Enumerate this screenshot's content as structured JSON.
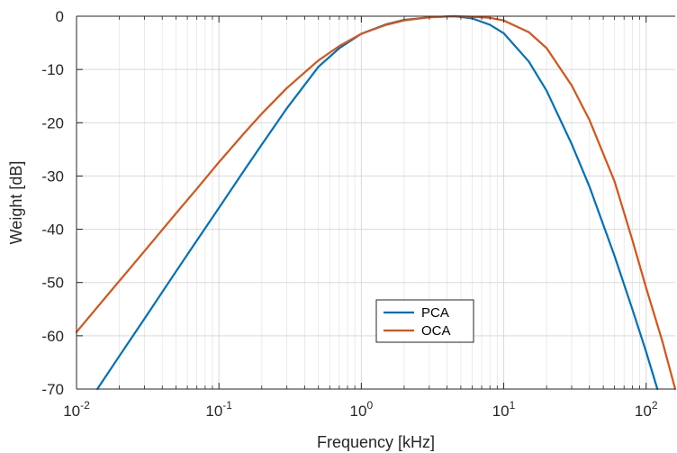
{
  "chart_data": {
    "type": "line",
    "xlabel": "Frequency [kHz]",
    "ylabel": "Weight [dB]",
    "xscale": "log",
    "xlim": [
      0.01,
      160
    ],
    "ylim": [
      -70,
      0
    ],
    "grid": true,
    "legend_position": "bottom-center",
    "x_ticks": [
      {
        "value": 0.01,
        "base": "10",
        "exp": "-2"
      },
      {
        "value": 0.1,
        "base": "10",
        "exp": "-1"
      },
      {
        "value": 1,
        "base": "10",
        "exp": "0"
      },
      {
        "value": 10,
        "base": "10",
        "exp": "1"
      },
      {
        "value": 100,
        "base": "10",
        "exp": "2"
      }
    ],
    "y_ticks": [
      {
        "value": 0,
        "label": "0"
      },
      {
        "value": -10,
        "label": "-10"
      },
      {
        "value": -20,
        "label": "-20"
      },
      {
        "value": -30,
        "label": "-30"
      },
      {
        "value": -40,
        "label": "-40"
      },
      {
        "value": -50,
        "label": "-50"
      },
      {
        "value": -60,
        "label": "-60"
      },
      {
        "value": -70,
        "label": "-70"
      }
    ],
    "series": [
      {
        "name": "PCA",
        "color": "#0072BD",
        "points": [
          [
            0.014,
            -70
          ],
          [
            0.02,
            -63.8
          ],
          [
            0.03,
            -56.8
          ],
          [
            0.05,
            -47.9
          ],
          [
            0.07,
            -42.1
          ],
          [
            0.1,
            -36
          ],
          [
            0.15,
            -29
          ],
          [
            0.2,
            -24.1
          ],
          [
            0.3,
            -17.3
          ],
          [
            0.5,
            -9.5
          ],
          [
            0.7,
            -6
          ],
          [
            1,
            -3.3
          ],
          [
            1.5,
            -1.5
          ],
          [
            2,
            -0.7
          ],
          [
            3,
            -0.2
          ],
          [
            4.5,
            0
          ],
          [
            6,
            -0.4
          ],
          [
            8,
            -1.6
          ],
          [
            10,
            -3.2
          ],
          [
            15,
            -8.5
          ],
          [
            20,
            -14
          ],
          [
            30,
            -24
          ],
          [
            40,
            -32
          ],
          [
            60,
            -45
          ],
          [
            80,
            -55
          ],
          [
            100,
            -63
          ],
          [
            120,
            -70
          ]
        ]
      },
      {
        "name": "OCA",
        "color": "#D95319",
        "points": [
          [
            0.01,
            -59.3
          ],
          [
            0.02,
            -49.7
          ],
          [
            0.03,
            -44.1
          ],
          [
            0.05,
            -37
          ],
          [
            0.07,
            -32.4
          ],
          [
            0.1,
            -27.4
          ],
          [
            0.15,
            -22
          ],
          [
            0.2,
            -18.3
          ],
          [
            0.3,
            -13.5
          ],
          [
            0.5,
            -8.3
          ],
          [
            0.7,
            -5.6
          ],
          [
            1,
            -3.3
          ],
          [
            1.5,
            -1.6
          ],
          [
            2,
            -0.8
          ],
          [
            3,
            -0.2
          ],
          [
            4.5,
            0
          ],
          [
            6,
            -0.1
          ],
          [
            8,
            -0.3
          ],
          [
            10,
            -0.8
          ],
          [
            15,
            -3
          ],
          [
            20,
            -6
          ],
          [
            30,
            -13
          ],
          [
            40,
            -19.5
          ],
          [
            60,
            -31
          ],
          [
            80,
            -42
          ],
          [
            100,
            -51
          ],
          [
            130,
            -61
          ],
          [
            160,
            -70
          ]
        ]
      }
    ]
  }
}
